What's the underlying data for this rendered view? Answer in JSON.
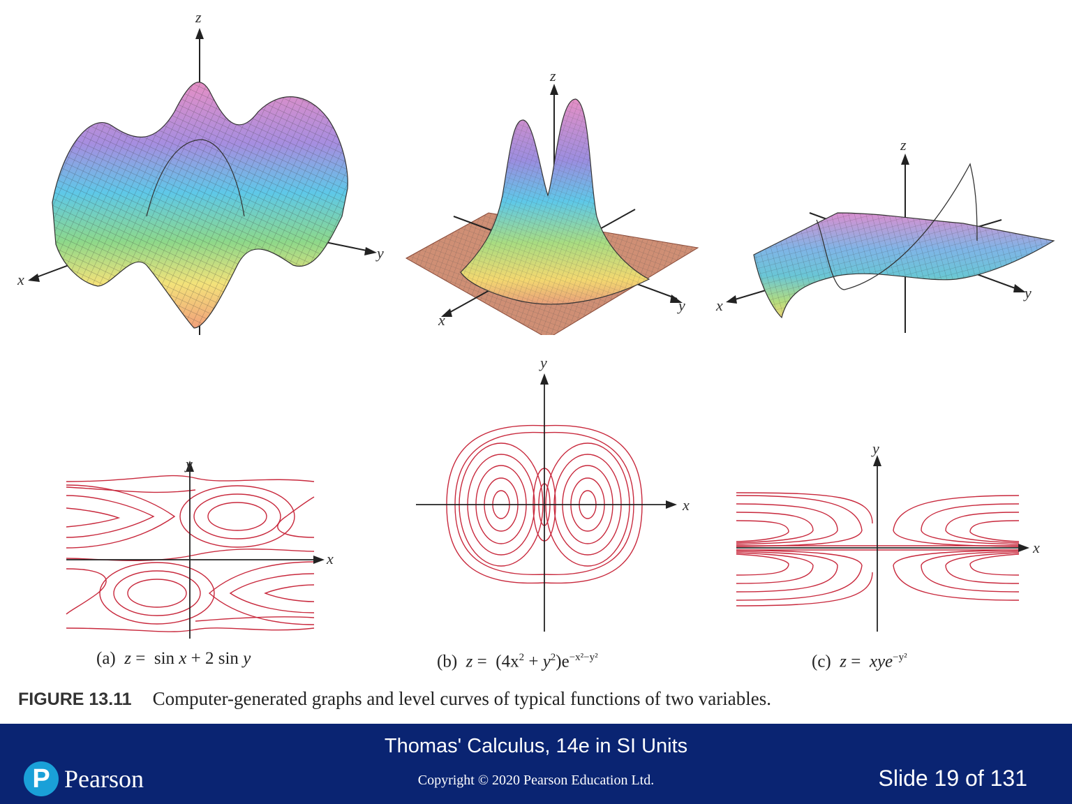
{
  "panels": [
    {
      "id": "a",
      "graph_axes": {
        "x": "x",
        "y": "y",
        "z": "z"
      },
      "level_axes": {
        "x": "x",
        "y": "y"
      }
    },
    {
      "id": "b",
      "graph_axes": {
        "x": "x",
        "y": "y",
        "z": "z"
      },
      "level_axes": {
        "x": "x",
        "y": "y"
      }
    },
    {
      "id": "c",
      "graph_axes": {
        "x": "x",
        "y": "y",
        "z": "z"
      },
      "level_axes": {
        "x": "x",
        "y": "y"
      }
    }
  ],
  "captions": {
    "a": {
      "label": "(a)",
      "z": "z",
      "eq": "=",
      "rhs_1": "sin",
      "var_x": "x",
      "plus": "+",
      "rhs_2": "2 sin",
      "var_y": "y"
    },
    "b": {
      "label": "(b)",
      "z": "z",
      "eq": "=",
      "rhs_open": "(4x",
      "sq1": "2",
      "plus": "+",
      "y2": "y",
      "sq2": "2",
      "rhs_close": ")e",
      "exp": "−x²−y²"
    },
    "c": {
      "label": "(c)",
      "z": "z",
      "eq": "=",
      "rhs": "xye",
      "exp": "−y²"
    }
  },
  "figure": {
    "number": "FIGURE 13.11",
    "text": "Computer-generated graphs and level curves of typical functions of two variables."
  },
  "footer": {
    "title": "Thomas' Calculus, 14e in SI Units",
    "copyright": "Copyright © 2020 Pearson Education Ltd.",
    "slide": "Slide 19 of 131",
    "brand": "Pearson",
    "brand_mark": "P"
  },
  "colors": {
    "curve": "#c8283c",
    "footer_bg": "#0a2472",
    "logo": "#1aa0d8"
  }
}
